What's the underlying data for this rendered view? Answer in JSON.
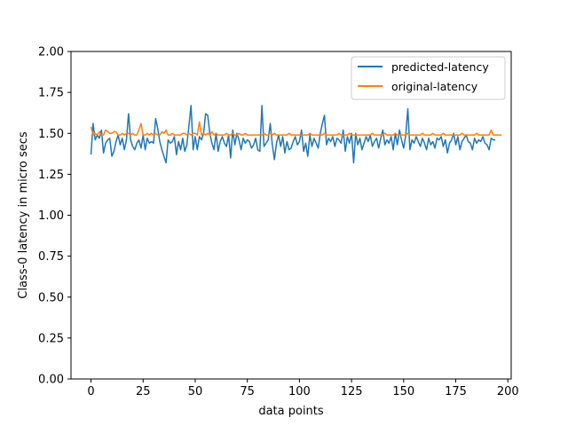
{
  "chart_data": {
    "type": "line",
    "title": "",
    "xlabel": "data points",
    "ylabel": "Class-0 latency in micro secs",
    "xlim": [
      -9.6,
      201.6
    ],
    "ylim": [
      0.0,
      2.0
    ],
    "xticks": [
      0,
      25,
      50,
      75,
      100,
      125,
      150,
      175,
      200
    ],
    "yticks": [
      0.0,
      0.25,
      0.5,
      0.75,
      1.0,
      1.25,
      1.5,
      1.75,
      2.0
    ],
    "xtick_labels": [
      "0",
      "25",
      "50",
      "75",
      "100",
      "125",
      "150",
      "175",
      "200"
    ],
    "ytick_labels": [
      "0.00",
      "0.25",
      "0.50",
      "0.75",
      "1.00",
      "1.25",
      "1.50",
      "1.75",
      "2.00"
    ],
    "grid": false,
    "legend_position": "top-right",
    "series": [
      {
        "name": "predicted-latency",
        "color": "#1f77b4",
        "values": [
          1.37,
          1.56,
          1.46,
          1.49,
          1.47,
          1.52,
          1.38,
          1.44,
          1.46,
          1.47,
          1.36,
          1.39,
          1.45,
          1.49,
          1.43,
          1.47,
          1.4,
          1.46,
          1.62,
          1.46,
          1.42,
          1.4,
          1.44,
          1.46,
          1.41,
          1.49,
          1.4,
          1.47,
          1.44,
          1.45,
          1.44,
          1.59,
          1.53,
          1.45,
          1.4,
          1.36,
          1.32,
          1.46,
          1.44,
          1.45,
          1.48,
          1.37,
          1.45,
          1.4,
          1.47,
          1.39,
          1.43,
          1.55,
          1.67,
          1.4,
          1.48,
          1.4,
          1.48,
          1.46,
          1.5,
          1.62,
          1.61,
          1.5,
          1.44,
          1.4,
          1.5,
          1.39,
          1.45,
          1.48,
          1.44,
          1.42,
          1.49,
          1.35,
          1.52,
          1.43,
          1.5,
          1.46,
          1.4,
          1.47,
          1.44,
          1.46,
          1.45,
          1.41,
          1.43,
          1.47,
          1.4,
          1.39,
          1.67,
          1.42,
          1.44,
          1.46,
          1.56,
          1.43,
          1.34,
          1.44,
          1.49,
          1.42,
          1.48,
          1.38,
          1.45,
          1.4,
          1.41,
          1.45,
          1.48,
          1.43,
          1.45,
          1.52,
          1.39,
          1.44,
          1.36,
          1.49,
          1.42,
          1.47,
          1.44,
          1.41,
          1.5,
          1.56,
          1.61,
          1.43,
          1.47,
          1.45,
          1.48,
          1.42,
          1.47,
          1.46,
          1.44,
          1.52,
          1.39,
          1.48,
          1.44,
          1.5,
          1.32,
          1.5,
          1.43,
          1.47,
          1.4,
          1.44,
          1.48,
          1.45,
          1.49,
          1.42,
          1.45,
          1.47,
          1.41,
          1.47,
          1.52,
          1.43,
          1.46,
          1.44,
          1.48,
          1.4,
          1.5,
          1.43,
          1.52,
          1.46,
          1.41,
          1.49,
          1.65,
          1.4,
          1.46,
          1.44,
          1.48,
          1.45,
          1.42,
          1.47,
          1.44,
          1.4,
          1.47,
          1.43,
          1.45,
          1.41,
          1.47,
          1.46,
          1.48,
          1.42,
          1.46,
          1.38,
          1.44,
          1.46,
          1.5,
          1.43,
          1.48,
          1.4,
          1.45,
          1.47,
          1.49,
          1.45,
          1.44,
          1.4,
          1.47,
          1.44,
          1.46,
          1.45,
          1.48,
          1.44,
          1.43,
          1.4,
          1.47,
          1.46,
          1.46
        ]
      },
      {
        "name": "original-latency",
        "color": "#ff7f0e",
        "values": [
          1.54,
          1.49,
          1.5,
          1.49,
          1.51,
          1.49,
          1.49,
          1.52,
          1.51,
          1.5,
          1.5,
          1.51,
          1.51,
          1.49,
          1.49,
          1.5,
          1.49,
          1.5,
          1.5,
          1.49,
          1.5,
          1.49,
          1.49,
          1.52,
          1.56,
          1.49,
          1.49,
          1.5,
          1.49,
          1.5,
          1.49,
          1.5,
          1.49,
          1.49,
          1.51,
          1.5,
          1.52,
          1.49,
          1.49,
          1.5,
          1.49,
          1.49,
          1.49,
          1.49,
          1.5,
          1.5,
          1.49,
          1.5,
          1.49,
          1.5,
          1.5,
          1.49,
          1.57,
          1.49,
          1.5,
          1.49,
          1.5,
          1.49,
          1.51,
          1.49,
          1.5,
          1.49,
          1.49,
          1.49,
          1.49,
          1.5,
          1.49,
          1.49,
          1.5,
          1.49,
          1.49,
          1.5,
          1.49,
          1.49,
          1.5,
          1.49,
          1.49,
          1.49,
          1.49,
          1.49,
          1.49,
          1.49,
          1.49,
          1.5,
          1.49,
          1.49,
          1.5,
          1.49,
          1.5,
          1.49,
          1.49,
          1.49,
          1.49,
          1.49,
          1.49,
          1.5,
          1.49,
          1.49,
          1.49,
          1.49,
          1.49,
          1.49,
          1.49,
          1.49,
          1.49,
          1.5,
          1.49,
          1.49,
          1.49,
          1.49,
          1.49,
          1.49,
          1.5,
          1.49,
          1.49,
          1.49,
          1.49,
          1.49,
          1.49,
          1.5,
          1.49,
          1.49,
          1.49,
          1.49,
          1.5,
          1.49,
          1.49,
          1.49,
          1.49,
          1.49,
          1.49,
          1.49,
          1.49,
          1.49,
          1.49,
          1.5,
          1.49,
          1.49,
          1.49,
          1.49,
          1.49,
          1.5,
          1.49,
          1.49,
          1.49,
          1.49,
          1.5,
          1.49,
          1.49,
          1.49,
          1.49,
          1.49,
          1.5,
          1.49,
          1.49,
          1.49,
          1.49,
          1.49,
          1.49,
          1.5,
          1.49,
          1.49,
          1.49,
          1.49,
          1.5,
          1.49,
          1.49,
          1.49,
          1.49,
          1.5,
          1.49,
          1.49,
          1.49,
          1.49,
          1.49,
          1.49,
          1.49,
          1.49,
          1.5,
          1.49,
          1.49,
          1.49,
          1.49,
          1.49,
          1.49,
          1.5,
          1.49,
          1.49,
          1.49,
          1.49,
          1.49,
          1.49,
          1.52,
          1.49,
          1.49,
          1.49,
          1.49,
          1.49
        ]
      }
    ]
  }
}
